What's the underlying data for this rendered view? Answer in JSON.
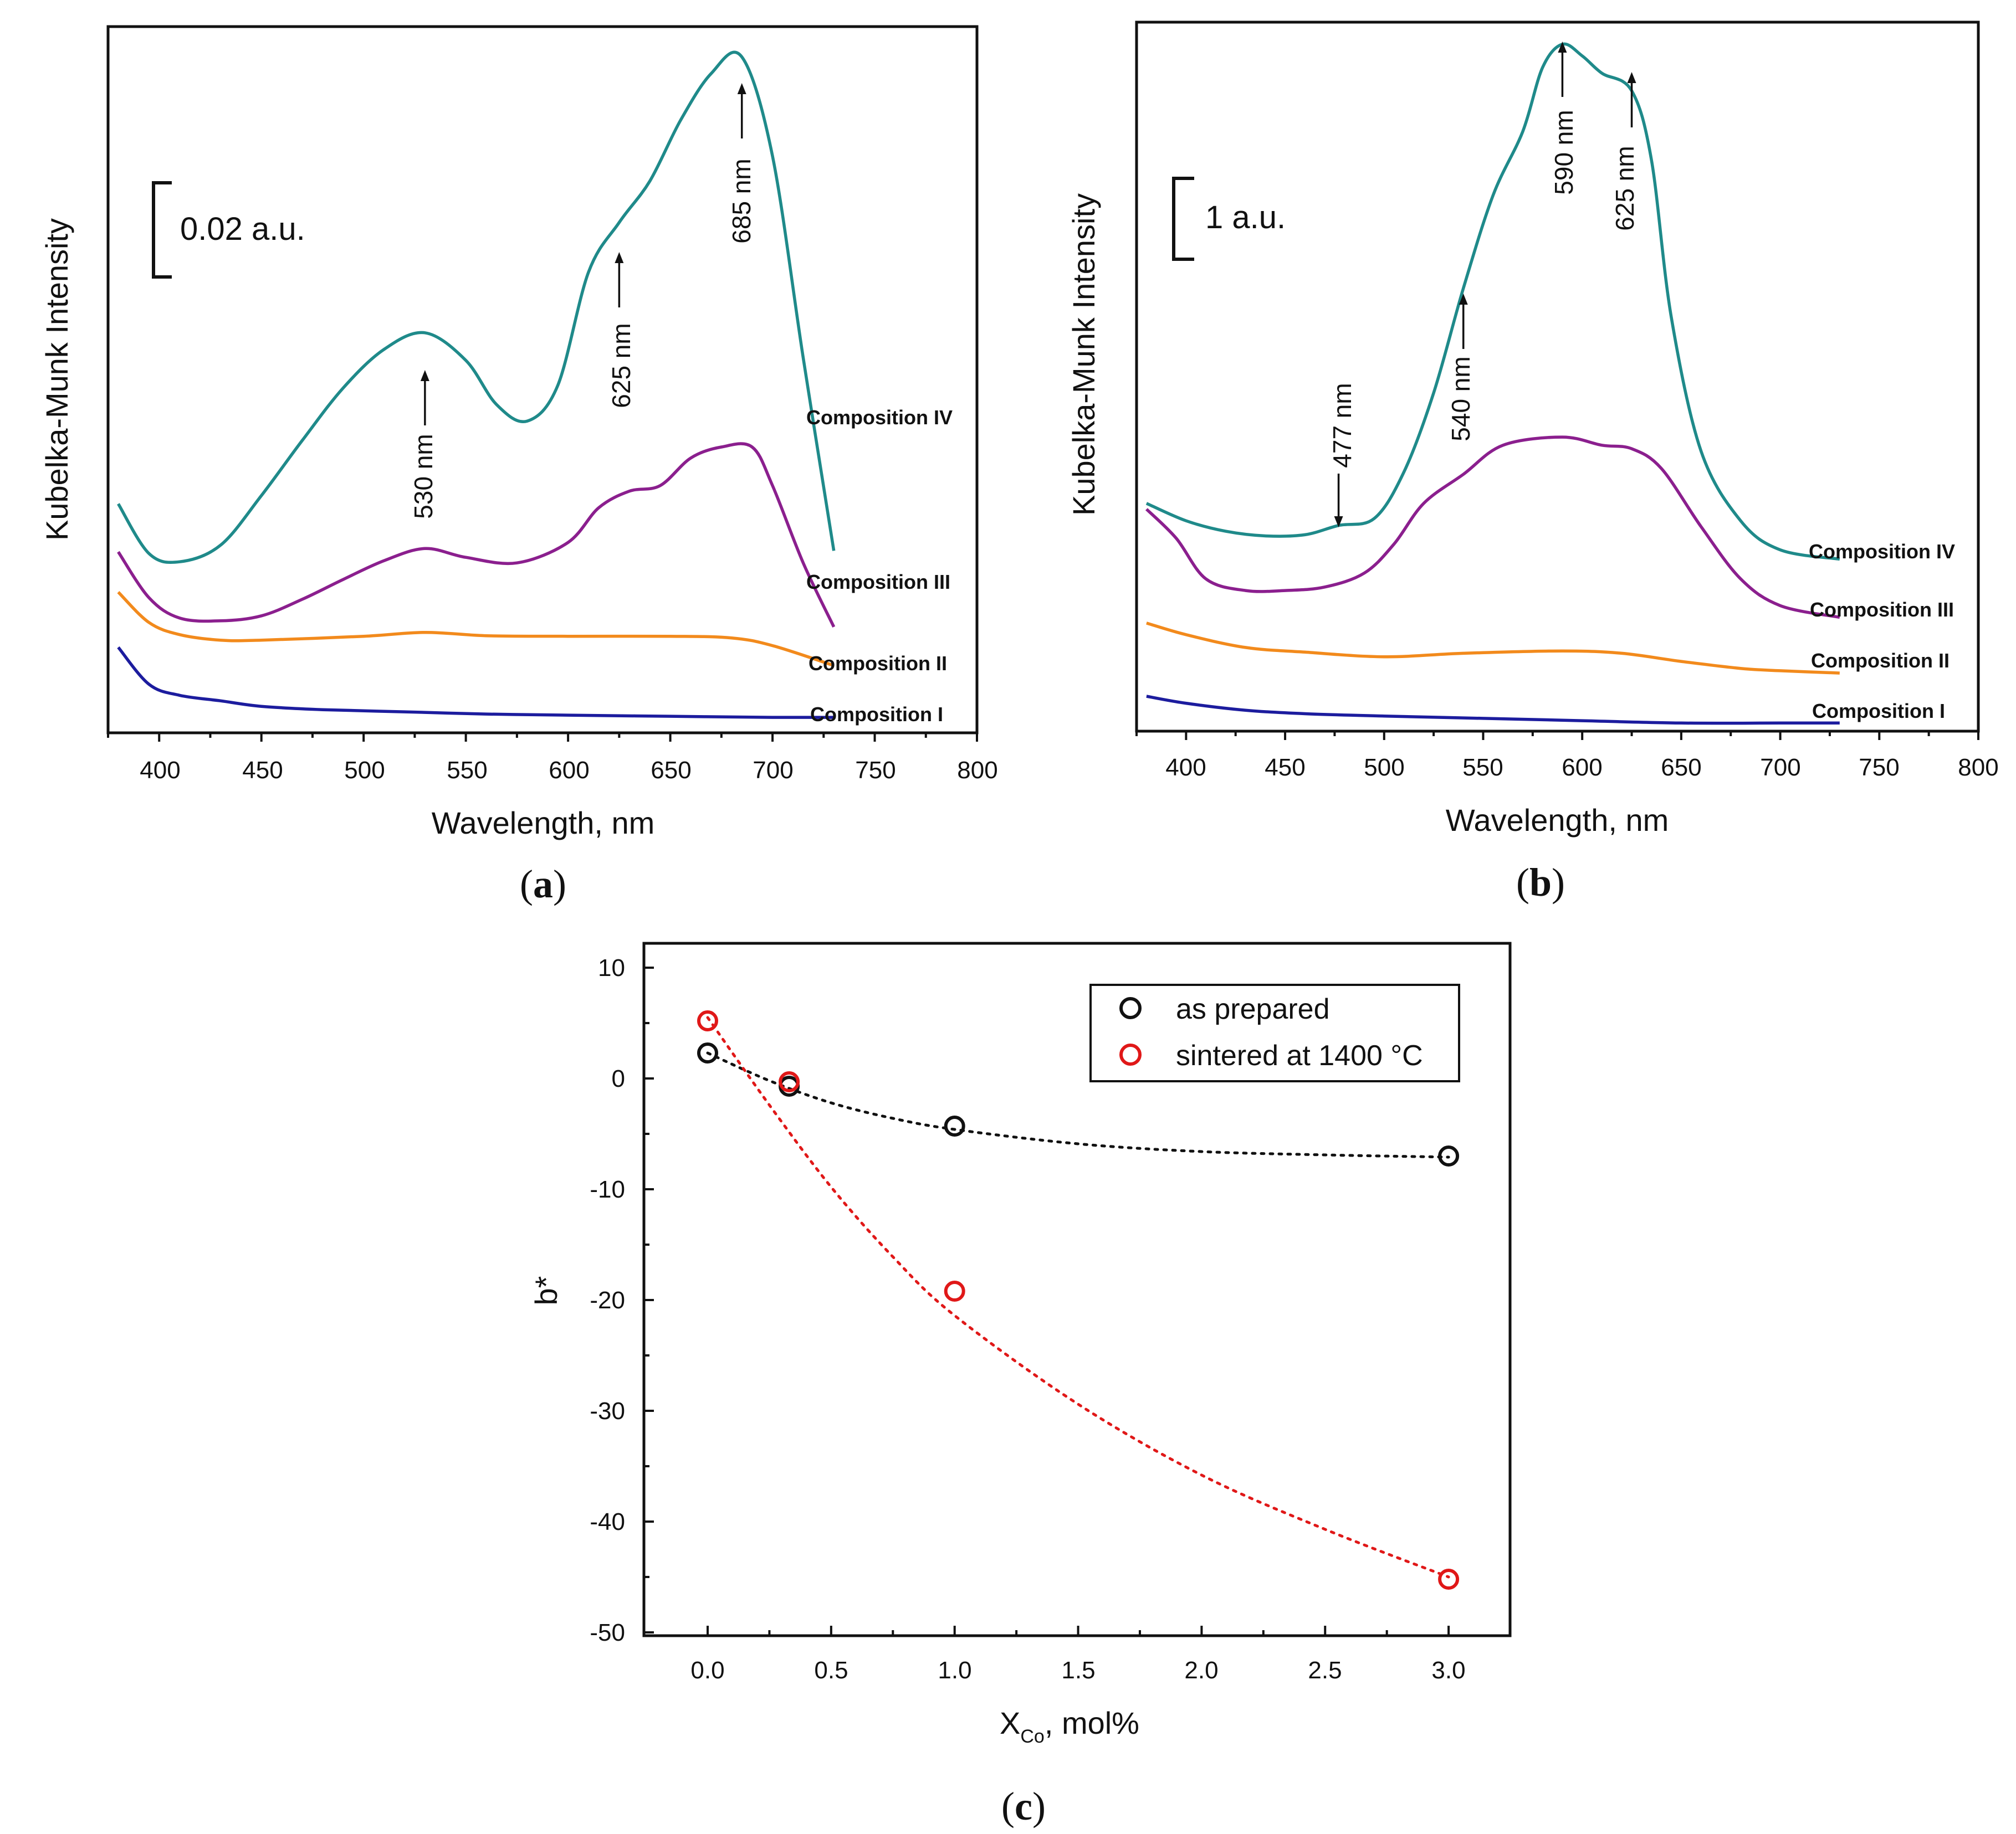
{
  "colors": {
    "composition_IV": "#1f8a8a",
    "composition_III": "#8b1f8e",
    "composition_II": "#f28a1c",
    "composition_I": "#1c1c9e",
    "as_prepared": "#111111",
    "sintered": "#e01818"
  },
  "chart_data": [
    {
      "panel": "a",
      "type": "line",
      "caption_letter": "a",
      "xlabel": "Wavelength, nm",
      "ylabel": "Kubelka-Munk Intensity",
      "xlim": [
        375,
        800
      ],
      "ylim": [
        0,
        0.128
      ],
      "xticks": [
        "400",
        "450",
        "500",
        "550",
        "600",
        "650",
        "700",
        "750",
        "800"
      ],
      "scale_bar_label": "0.02 a.u.",
      "scale_bar_value": 0.02,
      "annotations": [
        {
          "text": "530 nm",
          "x": 530
        },
        {
          "text": "625 nm",
          "x": 625
        },
        {
          "text": "685 nm",
          "x": 685
        }
      ],
      "series": [
        {
          "name": "Composition IV",
          "x": [
            380,
            395,
            410,
            430,
            450,
            470,
            490,
            510,
            530,
            550,
            565,
            580,
            595,
            610,
            625,
            640,
            655,
            670,
            685,
            700,
            715,
            730
          ],
          "y": [
            0.0415,
            0.0325,
            0.031,
            0.034,
            0.043,
            0.053,
            0.0625,
            0.0695,
            0.0725,
            0.0675,
            0.0595,
            0.0565,
            0.063,
            0.0835,
            0.0925,
            0.1,
            0.111,
            0.1195,
            0.1225,
            0.1045,
            0.068,
            0.033
          ]
        },
        {
          "name": "Composition III",
          "x": [
            380,
            395,
            410,
            430,
            450,
            470,
            490,
            510,
            530,
            550,
            575,
            600,
            615,
            630,
            645,
            660,
            675,
            690,
            700,
            715,
            730
          ],
          "y": [
            0.0328,
            0.0245,
            0.0208,
            0.0203,
            0.0212,
            0.0242,
            0.0278,
            0.0312,
            0.0334,
            0.0318,
            0.0308,
            0.0345,
            0.0408,
            0.0438,
            0.0448,
            0.0498,
            0.0518,
            0.0518,
            0.0448,
            0.0308,
            0.0192
          ]
        },
        {
          "name": "Composition II",
          "x": [
            380,
            395,
            410,
            430,
            450,
            500,
            530,
            560,
            600,
            650,
            680,
            700,
            730
          ],
          "y": [
            0.0255,
            0.02,
            0.0178,
            0.0168,
            0.0168,
            0.0175,
            0.0182,
            0.0176,
            0.0175,
            0.0175,
            0.0172,
            0.0158,
            0.0122
          ]
        },
        {
          "name": "Composition I",
          "x": [
            380,
            395,
            410,
            430,
            450,
            480,
            520,
            560,
            600,
            650,
            700,
            730
          ],
          "y": [
            0.0155,
            0.0088,
            0.0068,
            0.0058,
            0.0048,
            0.0042,
            0.0038,
            0.0034,
            0.0032,
            0.003,
            0.0028,
            0.0028
          ]
        }
      ]
    },
    {
      "panel": "b",
      "type": "line",
      "caption_letter": "b",
      "xlabel": "Wavelength, nm",
      "ylabel": "Kubelka-Munk Intensity",
      "xlim": [
        375,
        800
      ],
      "ylim": [
        0,
        6.1
      ],
      "xticks": [
        "400",
        "450",
        "500",
        "550",
        "600",
        "650",
        "700",
        "750",
        "800"
      ],
      "scale_bar_label": "1 a.u.",
      "scale_bar_value": 1,
      "annotations": [
        {
          "text": "477 nm",
          "x": 477
        },
        {
          "text": "540 nm",
          "x": 540
        },
        {
          "text": "590 nm",
          "x": 590
        },
        {
          "text": "625 nm",
          "x": 625
        }
      ],
      "series": [
        {
          "name": "Composition IV",
          "x": [
            380,
            400,
            420,
            440,
            460,
            477,
            495,
            510,
            525,
            540,
            555,
            570,
            580,
            590,
            600,
            610,
            625,
            635,
            645,
            660,
            680,
            700,
            730
          ],
          "y": [
            1.96,
            1.81,
            1.72,
            1.68,
            1.69,
            1.77,
            1.83,
            2.23,
            2.91,
            3.81,
            4.61,
            5.16,
            5.71,
            5.91,
            5.81,
            5.66,
            5.51,
            4.91,
            3.56,
            2.41,
            1.81,
            1.56,
            1.48
          ]
        },
        {
          "name": "Composition III",
          "x": [
            380,
            395,
            410,
            430,
            450,
            470,
            490,
            505,
            520,
            540,
            560,
            590,
            610,
            625,
            640,
            660,
            680,
            700,
            730
          ],
          "y": [
            1.91,
            1.66,
            1.31,
            1.21,
            1.21,
            1.24,
            1.36,
            1.61,
            1.96,
            2.21,
            2.46,
            2.53,
            2.46,
            2.43,
            2.26,
            1.76,
            1.31,
            1.08,
            0.98
          ]
        },
        {
          "name": "Composition II",
          "x": [
            380,
            400,
            430,
            460,
            500,
            540,
            590,
            620,
            650,
            680,
            700,
            730
          ],
          "y": [
            0.93,
            0.83,
            0.72,
            0.68,
            0.64,
            0.67,
            0.69,
            0.67,
            0.6,
            0.54,
            0.52,
            0.5
          ]
        },
        {
          "name": "Composition I",
          "x": [
            380,
            400,
            430,
            460,
            500,
            550,
            600,
            650,
            700,
            730
          ],
          "y": [
            0.3,
            0.24,
            0.18,
            0.15,
            0.13,
            0.11,
            0.09,
            0.07,
            0.07,
            0.07
          ]
        }
      ]
    },
    {
      "panel": "c",
      "type": "scatter",
      "caption_letter": "c",
      "xlabel_main": "X",
      "xlabel_sub": "Co",
      "xlabel_rest": ", mol%",
      "ylabel": "b*",
      "xlim": [
        -0.25,
        3.25
      ],
      "ylim": [
        -50,
        10
      ],
      "xticks": [
        "0.0",
        "0.5",
        "1.0",
        "1.5",
        "2.0",
        "2.5",
        "3.0"
      ],
      "yticks": [
        "10",
        "0",
        "-10",
        "-20",
        "-30",
        "-40",
        "-50"
      ],
      "series": [
        {
          "name": "as prepared",
          "x": [
            0,
            0.33,
            1.0,
            3.0
          ],
          "y": [
            2.3,
            -0.7,
            -4.3,
            -7.0
          ],
          "fit_x": [
            0,
            0.25,
            0.5,
            0.75,
            1.0,
            1.5,
            2.0,
            2.5,
            3.0
          ],
          "fit_y": [
            2.3,
            -0.2,
            -2.2,
            -3.6,
            -4.6,
            -5.9,
            -6.6,
            -6.9,
            -7.1
          ]
        },
        {
          "name": "sintered at 1400 °C",
          "x": [
            0,
            0.33,
            1.0,
            3.0
          ],
          "y": [
            5.2,
            -0.3,
            -19.2,
            -45.2
          ],
          "fit_x": [
            0,
            0.25,
            0.5,
            0.75,
            1.0,
            1.5,
            2.0,
            2.5,
            3.0
          ],
          "fit_y": [
            5.5,
            -2.4,
            -9.8,
            -16.1,
            -21.4,
            -29.4,
            -35.8,
            -40.7,
            -45.0
          ]
        }
      ]
    }
  ]
}
